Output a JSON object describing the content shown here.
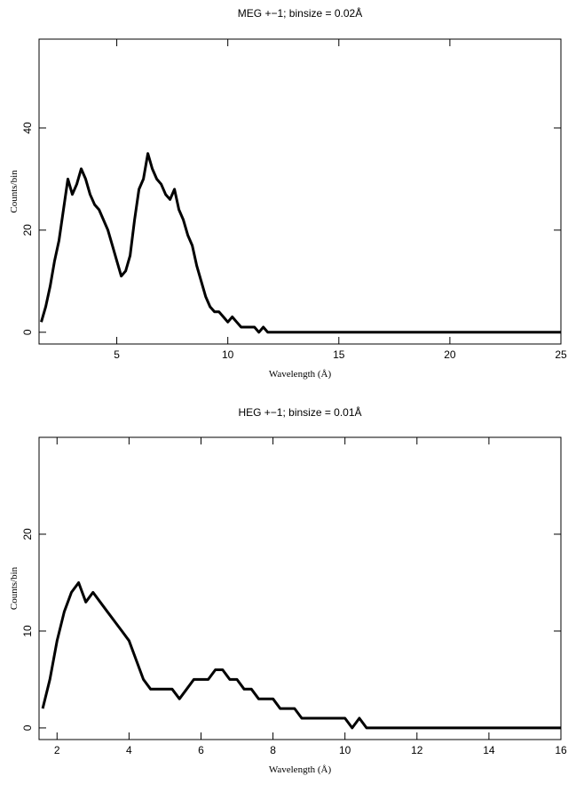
{
  "chart_data": [
    {
      "type": "line",
      "title": "MEG +−1; binsize = 0.02Å",
      "x_label": "Wavelength (Å)",
      "y_label": "Counts/bin",
      "color": "#000000",
      "x": [
        1.6,
        1.8,
        2.0,
        2.2,
        2.4,
        2.6,
        2.8,
        3.0,
        3.2,
        3.4,
        3.6,
        3.8,
        4.0,
        4.2,
        4.4,
        4.6,
        4.8,
        5.0,
        5.2,
        5.4,
        5.6,
        5.8,
        6.0,
        6.2,
        6.4,
        6.6,
        6.8,
        7.0,
        7.2,
        7.4,
        7.6,
        7.8,
        8.0,
        8.2,
        8.4,
        8.6,
        8.8,
        9.0,
        9.2,
        9.4,
        9.6,
        9.8,
        10.0,
        10.2,
        10.4,
        10.6,
        10.8,
        11.0,
        11.2,
        11.4,
        11.6,
        11.8,
        12.0,
        13,
        14,
        15,
        16,
        17,
        18,
        19,
        20,
        21,
        22,
        23,
        24,
        25
      ],
      "values": [
        2,
        5,
        9,
        14,
        18,
        24,
        30,
        27,
        29,
        32,
        30,
        27,
        25,
        24,
        22,
        20,
        17,
        14,
        11,
        12,
        15,
        22,
        28,
        30,
        35,
        32,
        30,
        29,
        27,
        26,
        28,
        24,
        22,
        19,
        17,
        13,
        10,
        7,
        5,
        4,
        4,
        3,
        2,
        3,
        2,
        1,
        1,
        1,
        1,
        0,
        1,
        0,
        0,
        0,
        0,
        0,
        0,
        0,
        0,
        0,
        0,
        0,
        0,
        0,
        0,
        0
      ],
      "xlim": [
        1.5,
        25
      ],
      "ylim": [
        -2.3,
        57.4
      ],
      "xticks": [
        5,
        10,
        15,
        20,
        25
      ],
      "yticks": [
        0,
        20,
        40
      ]
    },
    {
      "type": "line",
      "title": "HEG +−1; binsize = 0.01Å",
      "x_label": "Wavelength (Å)",
      "y_label": "Counts/bin",
      "color": "#000000",
      "x": [
        1.6,
        1.8,
        2.0,
        2.2,
        2.4,
        2.6,
        2.8,
        3.0,
        3.2,
        3.4,
        3.6,
        3.8,
        4.0,
        4.2,
        4.4,
        4.6,
        4.8,
        5.0,
        5.2,
        5.4,
        5.6,
        5.8,
        6.0,
        6.2,
        6.4,
        6.6,
        6.8,
        7.0,
        7.2,
        7.4,
        7.6,
        7.8,
        8.0,
        8.2,
        8.4,
        8.6,
        8.8,
        9.0,
        9.2,
        9.4,
        9.6,
        9.8,
        10.0,
        10.2,
        10.4,
        10.6,
        10.8,
        11.0,
        11.2,
        11.4,
        11.6,
        11.8,
        12.0,
        12.2,
        12.4,
        13,
        14,
        15,
        16
      ],
      "values": [
        2,
        5,
        9,
        12,
        14,
        15,
        13,
        14,
        13,
        12,
        11,
        10,
        9,
        7,
        5,
        4,
        4,
        4,
        4,
        3,
        4,
        5,
        5,
        5,
        6,
        6,
        5,
        5,
        4,
        4,
        3,
        3,
        3,
        2,
        2,
        2,
        1,
        1,
        1,
        1,
        1,
        1,
        1,
        0,
        1,
        0,
        0,
        0,
        0,
        0,
        0,
        0,
        0,
        0,
        0,
        0,
        0,
        0,
        0
      ],
      "xlim": [
        1.5,
        16
      ],
      "ylim": [
        -1.2,
        30
      ],
      "xticks": [
        2,
        4,
        6,
        8,
        10,
        12,
        14,
        16
      ],
      "yticks": [
        0,
        10,
        20
      ]
    }
  ]
}
